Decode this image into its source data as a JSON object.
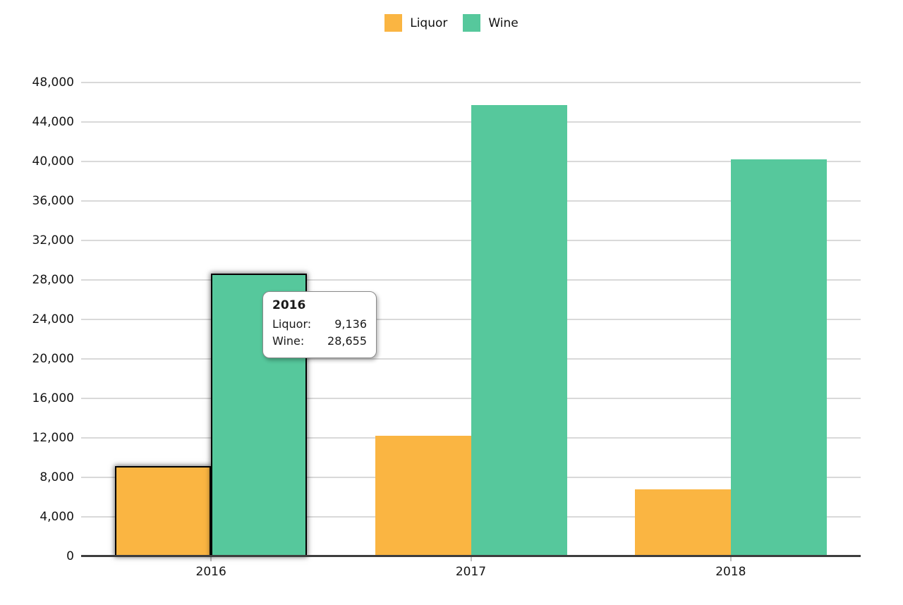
{
  "legend": {
    "items": [
      {
        "label": "Liquor",
        "color": "#FAB542"
      },
      {
        "label": "Wine",
        "color": "#56C89C"
      }
    ]
  },
  "chart_data": {
    "type": "bar",
    "categories": [
      "2016",
      "2017",
      "2018"
    ],
    "series": [
      {
        "name": "Liquor",
        "color": "#FAB542",
        "values": [
          9136,
          12200,
          6800
        ]
      },
      {
        "name": "Wine",
        "color": "#56C89C",
        "values": [
          28655,
          45750,
          40200
        ]
      }
    ],
    "title": "",
    "xlabel": "",
    "ylabel": "",
    "ylim": [
      0,
      48000
    ],
    "ytick_step": 4000,
    "ytick_labels": [
      "0",
      "4,000",
      "8,000",
      "12,000",
      "16,000",
      "20,000",
      "24,000",
      "28,000",
      "32,000",
      "36,000",
      "40,000",
      "44,000",
      "48,000"
    ],
    "grid": true,
    "legend_position": "top-center",
    "highlighted_category": "2016",
    "colors": {
      "gridline": "#d9d9d9",
      "axis": "#3d3d3d",
      "text": "#141414"
    }
  },
  "tooltip": {
    "title": "2016",
    "rows": [
      {
        "label": "Liquor: ",
        "value": "9,136"
      },
      {
        "label": "Wine: ",
        "value": "28,655"
      }
    ]
  }
}
